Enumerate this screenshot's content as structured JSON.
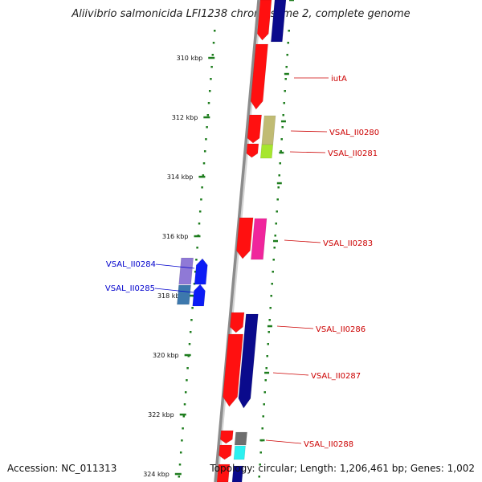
{
  "title": "Aliivibrio salmonicida LFI1238 chromosome 2, complete genome",
  "accession": "Accession: NC_011313",
  "summary": "Topology: circular; Length: 1,206,461 bp; Genes: 1,002",
  "colors": {
    "ruler": "#1e7d1e",
    "backbone": "#8c8c8c",
    "red": "#ff1010",
    "navy": "#0a0a8c",
    "olive": "#c0bb73",
    "lime": "#a6e62e",
    "pink": "#f0259c",
    "lavender": "#8f79d6",
    "blue": "#0c1cf5",
    "steel": "#3d78ad",
    "grey": "#6e6e6e",
    "cyan": "#2cf0f0",
    "label_red": "#cc0000",
    "label_blue": "#0000cc"
  },
  "ruler_ticks": [
    "310 kbp",
    "312 kbp",
    "314 kbp",
    "316 kbp",
    "318 kbp",
    "320 kbp",
    "322 kbp",
    "324 kbp"
  ],
  "gene_labels": {
    "iutA": "iutA",
    "VSAL_II0280": "VSAL_II0280",
    "VSAL_II0281": "VSAL_II0281",
    "VSAL_II0283": "VSAL_II0283",
    "VSAL_II0284": "VSAL_II0284",
    "VSAL_II0285": "VSAL_II0285",
    "VSAL_II0286": "VSAL_II0286",
    "VSAL_II0287": "VSAL_II0287",
    "VSAL_II0288": "VSAL_II0288"
  }
}
